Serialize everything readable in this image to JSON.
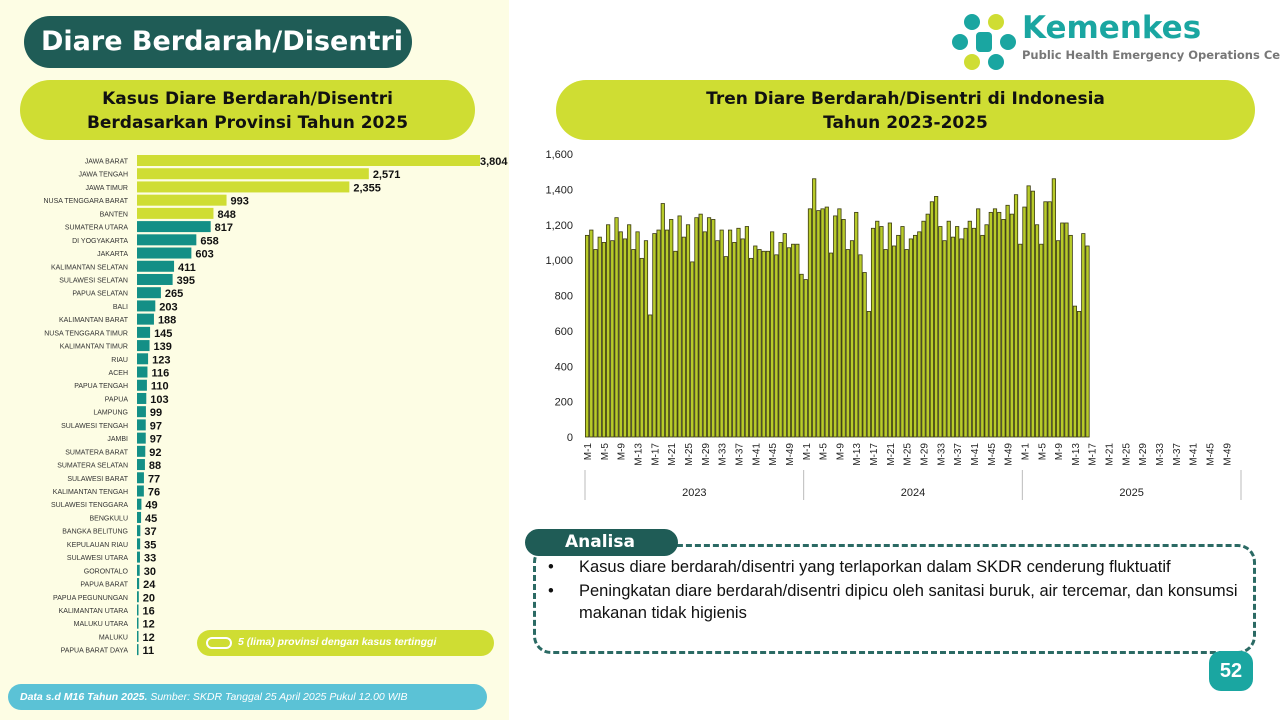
{
  "page": {
    "title": "Diare Berdarah/Disentri",
    "page_number": "52"
  },
  "logo": {
    "name": "Kemenkes",
    "subtitle": "Public Health Emergency Operations Center",
    "colors": [
      "#1aa6a1",
      "#cfdd33"
    ]
  },
  "left_chart_title": {
    "line1": "Kasus Diare Berdarah/Disentri",
    "line2": "Berdasarkan Provinsi Tahun 2025"
  },
  "right_chart_title": {
    "line1": "Tren Diare Berdarah/Disentri di Indonesia",
    "line2": "Tahun 2023-2025"
  },
  "legend": {
    "label": "5 (lima) provinsi dengan kasus tertinggi"
  },
  "footer": {
    "bold": "Data s.d M16 Tahun 2025.",
    "text": " Sumber: SKDR Tanggal 25 April 2025 Pukul 12.00 WIB"
  },
  "analisa": {
    "title": "Analisa",
    "bullets": [
      "Kasus diare berdarah/disentri yang terlaporkan dalam SKDR cenderung fluktuatif",
      "Peningkatan diare berdarah/disentri dipicu oleh sanitasi buruk, air tercemar, dan konsumsi makanan tidak higienis"
    ]
  },
  "colors": {
    "highlight": "#cfdd33",
    "other": "#138f86",
    "trend_bar": "#b8cb2a",
    "dark_green": "#1f5c56"
  },
  "chart_data": [
    {
      "type": "bar",
      "orientation": "horizontal",
      "categories": [
        "JAWA BARAT",
        "JAWA TENGAH",
        "JAWA TIMUR",
        "NUSA TENGGARA BARAT",
        "BANTEN",
        "SUMATERA UTARA",
        "DI YOGYAKARTA",
        "JAKARTA",
        "KALIMANTAN SELATAN",
        "SULAWESI SELATAN",
        "PAPUA SELATAN",
        "BALI",
        "KALIMANTAN BARAT",
        "NUSA TENGGARA TIMUR",
        "KALIMANTAN TIMUR",
        "RIAU",
        "ACEH",
        "PAPUA TENGAH",
        "PAPUA",
        "LAMPUNG",
        "SULAWESI TENGAH",
        "JAMBI",
        "SUMATERA BARAT",
        "SUMATERA SELATAN",
        "SULAWESI BARAT",
        "KALIMANTAN TENGAH",
        "SULAWESI TENGGARA",
        "BENGKULU",
        "BANGKA BELITUNG",
        "KEPULAUAN RIAU",
        "SULAWESI UTARA",
        "GORONTALO",
        "PAPUA BARAT",
        "PAPUA PEGUNUNGAN",
        "KALIMANTAN UTARA",
        "MALUKU UTARA",
        "MALUKU",
        "PAPUA BARAT DAYA"
      ],
      "values": [
        3804,
        2571,
        2355,
        993,
        848,
        817,
        658,
        603,
        411,
        395,
        265,
        203,
        188,
        145,
        139,
        123,
        116,
        110,
        103,
        99,
        97,
        97,
        92,
        88,
        77,
        76,
        49,
        45,
        37,
        35,
        33,
        30,
        24,
        20,
        16,
        12,
        12,
        11
      ],
      "value_labels": [
        "3,804",
        "2,571",
        "2,355",
        "993",
        "848",
        "817",
        "658",
        "603",
        "411",
        "395",
        "265",
        "203",
        "188",
        "145",
        "139",
        "123",
        "116",
        "110",
        "103",
        "99",
        "97",
        "97",
        "92",
        "88",
        "77",
        "76",
        "49",
        "45",
        "37",
        "35",
        "33",
        "30",
        "24",
        "20",
        "16",
        "12",
        "12",
        "11"
      ],
      "highlight_count": 5
    },
    {
      "type": "bar",
      "yticks": [
        "0",
        "200",
        "400",
        "600",
        "800",
        "1,000",
        "1,200",
        "1,400",
        "1,600"
      ],
      "ylim": [
        0,
        1600
      ],
      "weeks_per_year": 52,
      "xtick_labels": [
        "M-1",
        "M-5",
        "M-9",
        "M-13",
        "M-17",
        "M-21",
        "M-25",
        "M-29",
        "M-33",
        "M-37",
        "M-41",
        "M-45",
        "M-49"
      ],
      "years": [
        "2023",
        "2024",
        "2025"
      ],
      "series": [
        {
          "values": [
            [
              1140,
              1170,
              1060,
              1130,
              1100,
              1200,
              1110,
              1240,
              1160,
              1120,
              1200,
              1060,
              1160,
              1010,
              1110,
              690,
              1150,
              1170,
              1320,
              1170,
              1230,
              1050,
              1250,
              1130,
              1200,
              990,
              1240,
              1260,
              1160,
              1240,
              1230,
              1110,
              1170,
              1020,
              1170,
              1100,
              1180,
              1120,
              1190,
              1010,
              1080,
              1060,
              1050,
              1050,
              1160,
              1030,
              1100,
              1150,
              1070,
              1090,
              1090,
              920
            ],
            [
              890,
              1290,
              1460,
              1280,
              1290,
              1300,
              1040,
              1250,
              1290,
              1230,
              1060,
              1110,
              1270,
              1030,
              930,
              710,
              1180,
              1220,
              1190,
              1060,
              1210,
              1080,
              1140,
              1190,
              1060,
              1120,
              1140,
              1160,
              1220,
              1260,
              1330,
              1360,
              1190,
              1110,
              1220,
              1130,
              1190,
              1120,
              1180,
              1220,
              1180,
              1290,
              1140,
              1200,
              1270,
              1290,
              1270,
              1230,
              1310,
              1260,
              1370,
              1090
            ],
            [
              1300,
              1420,
              1390,
              1200,
              1090,
              1330,
              1330,
              1460,
              1110,
              1210,
              1210,
              1140,
              740,
              710,
              1150,
              1080
            ]
          ]
        }
      ]
    }
  ]
}
